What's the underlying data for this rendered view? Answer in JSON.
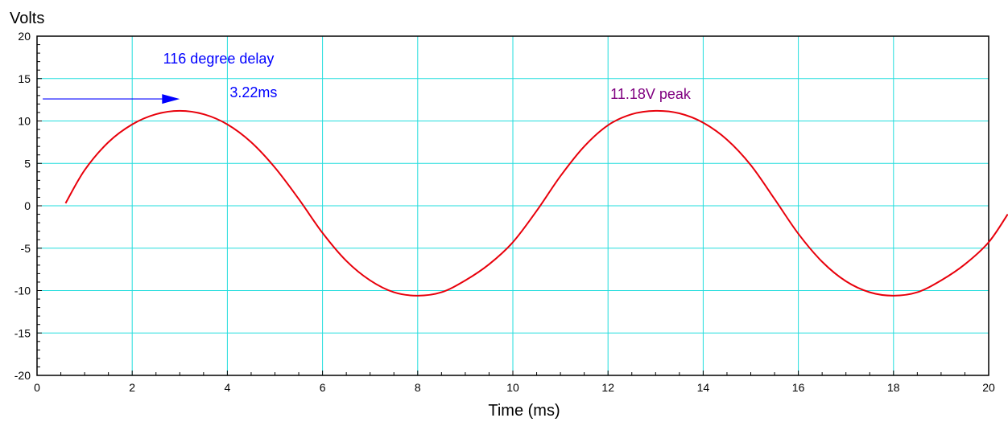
{
  "chart_data": {
    "type": "line",
    "xlabel": "Time (ms)",
    "ylabel": "Volts",
    "xlim": [
      0,
      20
    ],
    "ylim": [
      -20,
      20
    ],
    "x_ticks": [
      "0",
      "2",
      "4",
      "6",
      "8",
      "10",
      "12",
      "14",
      "16",
      "18",
      "20"
    ],
    "y_ticks": [
      "20",
      "15",
      "10",
      "5",
      "0",
      "-5",
      "-10",
      "-15",
      "-20"
    ],
    "grid": true,
    "colors": {
      "line": "#e8000b",
      "grid": "#22dddd",
      "arrow": "#0000ff",
      "annotation_delay": "#0000ff",
      "annotation_peak": "#800080"
    },
    "series": [
      {
        "x": [
          0.6,
          1.0,
          1.5,
          2.0,
          2.5,
          3.0,
          3.5,
          4.0,
          4.5,
          5.0,
          5.5,
          6.0,
          6.5,
          7.0,
          7.5,
          8.0,
          8.5,
          9.0,
          9.5,
          10.0,
          10.5,
          11.0,
          11.5,
          12.0,
          12.5,
          13.0,
          13.5,
          14.0,
          14.5,
          15.0,
          15.5,
          16.0,
          16.5,
          17.0,
          17.5,
          18.0,
          18.5,
          19.0,
          19.5,
          20.0,
          20.4
        ],
        "y": [
          0.3,
          4.2,
          7.5,
          9.6,
          10.8,
          11.2,
          10.8,
          9.6,
          7.5,
          4.5,
          0.8,
          -3.2,
          -6.5,
          -8.8,
          -10.2,
          -10.6,
          -10.2,
          -8.8,
          -6.9,
          -4.3,
          -0.6,
          3.5,
          7.0,
          9.5,
          10.8,
          11.2,
          10.9,
          9.8,
          7.8,
          4.8,
          0.8,
          -3.3,
          -6.6,
          -8.9,
          -10.2,
          -10.6,
          -10.2,
          -8.8,
          -6.9,
          -4.3,
          -1.0
        ]
      }
    ],
    "annotations": [
      {
        "text": "116 degree delay",
        "x": 2.65,
        "y": 16.8
      },
      {
        "text": "3.22ms",
        "x": 4.05,
        "y": 12.8
      },
      {
        "text": "11.18V peak",
        "x": 12.05,
        "y": 12.6
      }
    ],
    "arrow": {
      "x_from": 0.12,
      "x_to": 3.0,
      "y": 12.6
    }
  }
}
